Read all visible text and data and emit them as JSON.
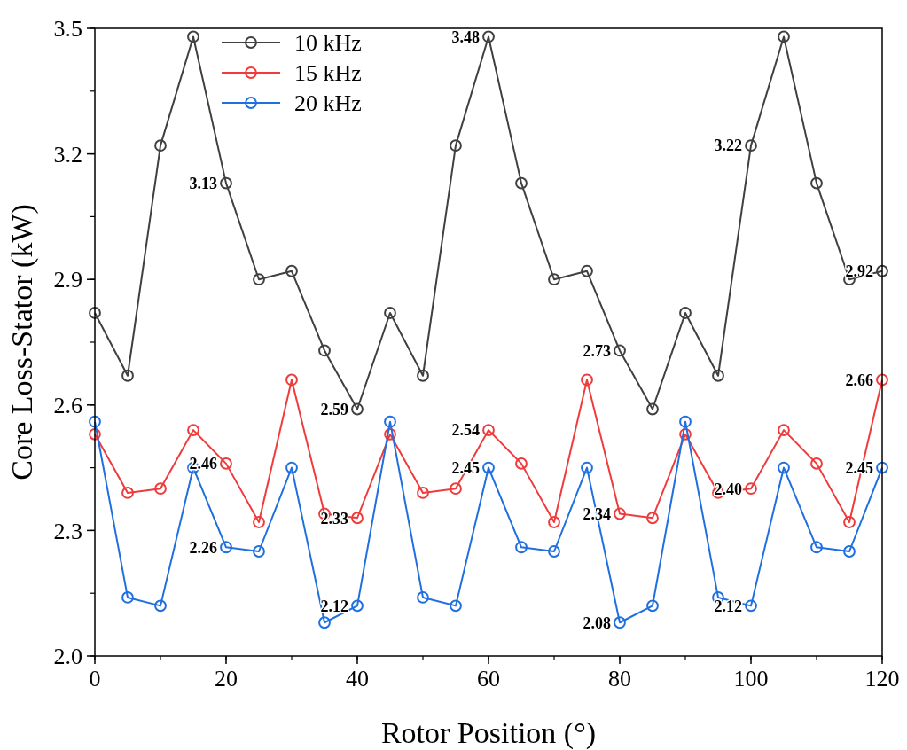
{
  "chart_data": {
    "type": "line",
    "xlabel": "Rotor Position (°)",
    "ylabel": "Core Loss-Stator (kW)",
    "x": [
      0,
      5,
      10,
      15,
      20,
      25,
      30,
      35,
      40,
      45,
      50,
      55,
      60,
      65,
      70,
      75,
      80,
      85,
      90,
      95,
      100,
      105,
      110,
      115,
      120
    ],
    "xlim": [
      0,
      120
    ],
    "xticks": [
      0,
      20,
      40,
      60,
      80,
      100,
      120
    ],
    "ylim": [
      2.0,
      3.5
    ],
    "yticks": [
      {
        "value": 2.0,
        "label": "2.0"
      },
      {
        "value": 2.3,
        "label": "2.3"
      },
      {
        "value": 2.6,
        "label": "2.6"
      },
      {
        "value": 2.9,
        "label": "2.9"
      },
      {
        "value": 3.2,
        "label": "3.2"
      },
      {
        "value": 3.5,
        "label": "3.5"
      }
    ],
    "marker": "circle",
    "line_style": "solid",
    "legend": "top left",
    "grid": false,
    "series": [
      {
        "name": "10 kHz",
        "color": "#404040",
        "values": [
          2.82,
          2.67,
          3.22,
          3.48,
          3.13,
          2.9,
          2.92,
          2.73,
          2.59,
          2.82,
          2.67,
          3.22,
          3.48,
          3.13,
          2.9,
          2.92,
          2.73,
          2.59,
          2.82,
          2.67,
          3.22,
          3.48,
          3.13,
          2.9,
          2.92
        ]
      },
      {
        "name": "15 kHz",
        "color": "#ef3b3b",
        "values": [
          2.53,
          2.39,
          2.4,
          2.54,
          2.46,
          2.32,
          2.66,
          2.34,
          2.33,
          2.53,
          2.39,
          2.4,
          2.54,
          2.46,
          2.32,
          2.66,
          2.34,
          2.33,
          2.53,
          2.39,
          2.4,
          2.54,
          2.46,
          2.32,
          2.66
        ]
      },
      {
        "name": "20 kHz",
        "color": "#1f6fe0",
        "values": [
          2.56,
          2.14,
          2.12,
          2.45,
          2.26,
          2.25,
          2.45,
          2.08,
          2.12,
          2.56,
          2.14,
          2.12,
          2.45,
          2.26,
          2.25,
          2.45,
          2.08,
          2.12,
          2.56,
          2.14,
          2.12,
          2.45,
          2.26,
          2.25,
          2.45
        ]
      }
    ],
    "annotations": [
      {
        "text": "3.13",
        "x": 20,
        "y": 3.13
      },
      {
        "text": "3.48",
        "x": 60,
        "y": 3.48
      },
      {
        "text": "3.22",
        "x": 100,
        "y": 3.22
      },
      {
        "text": "2.92",
        "x": 120,
        "y": 2.92
      },
      {
        "text": "2.73",
        "x": 80,
        "y": 2.73
      },
      {
        "text": "2.59",
        "x": 40,
        "y": 2.59
      },
      {
        "text": "2.66",
        "x": 120,
        "y": 2.66
      },
      {
        "text": "2.54",
        "x": 60,
        "y": 2.54
      },
      {
        "text": "2.46",
        "x": 20,
        "y": 2.46
      },
      {
        "text": "2.45",
        "x": 60,
        "y": 2.45
      },
      {
        "text": "2.45",
        "x": 120,
        "y": 2.45
      },
      {
        "text": "2.40",
        "x": 100,
        "y": 2.4
      },
      {
        "text": "2.34",
        "x": 80,
        "y": 2.34
      },
      {
        "text": "2.33",
        "x": 40,
        "y": 2.33
      },
      {
        "text": "2.26",
        "x": 20,
        "y": 2.26
      },
      {
        "text": "2.12",
        "x": 40,
        "y": 2.12
      },
      {
        "text": "2.08",
        "x": 80,
        "y": 2.08
      },
      {
        "text": "2.12",
        "x": 100,
        "y": 2.12
      }
    ]
  }
}
